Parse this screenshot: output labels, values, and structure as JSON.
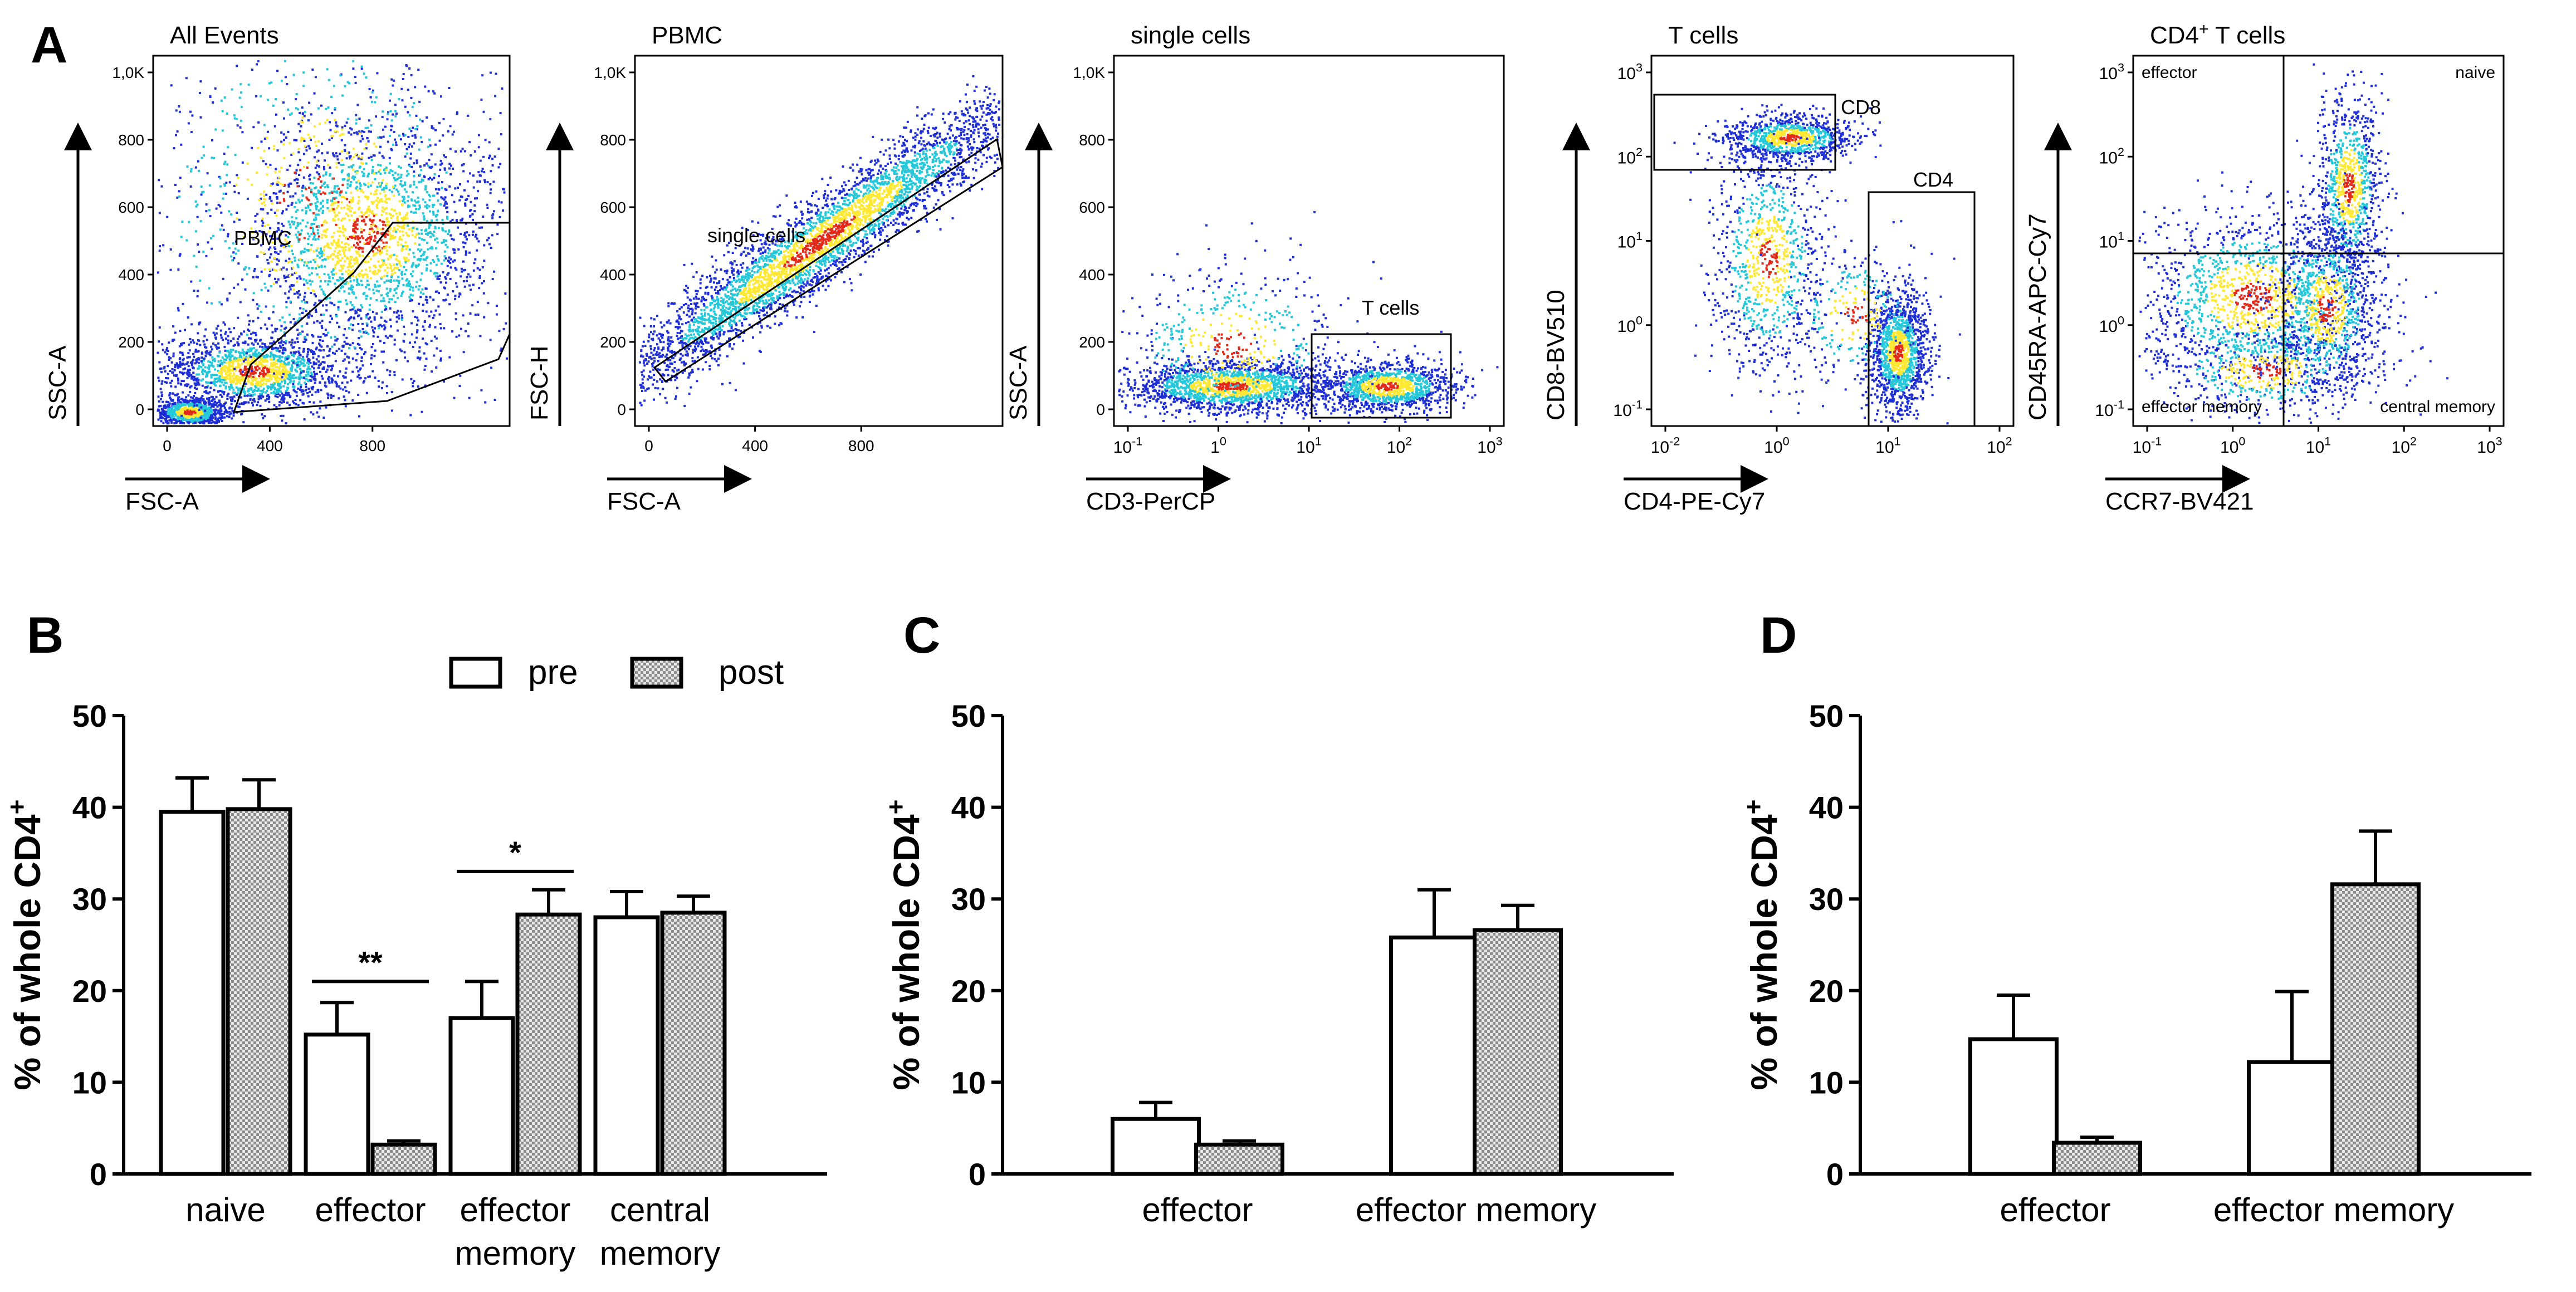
{
  "colors": {
    "axis": "#000000",
    "density_low": "#1f2fd6",
    "density_mid": "#24c8d9",
    "density_high": "#ffe833",
    "density_peak": "#e32a1a",
    "bar_pre_fill": "#ffffff",
    "bar_post_fill": "#9a9a9a"
  },
  "panel_a": {
    "letter": "A",
    "plots": [
      {
        "title": "All Events",
        "xlabel": "FSC-A",
        "ylabel": "SSC-A",
        "xticks": [
          "0",
          "400",
          "800"
        ],
        "yticks": [
          "0",
          "200",
          "400",
          "600",
          "800",
          "1,0K"
        ],
        "gates": [
          "PBMC"
        ]
      },
      {
        "title": "PBMC",
        "xlabel": "FSC-A",
        "ylabel": "FSC-H",
        "xticks": [
          "0",
          "400",
          "800"
        ],
        "yticks": [
          "0",
          "200",
          "400",
          "600",
          "800",
          "1,0K"
        ],
        "gates": [
          "single cells"
        ]
      },
      {
        "title": "single cells",
        "xlabel": "CD3-PerCP",
        "ylabel": "SSC-A",
        "xticks": [
          "10",
          "1",
          "10",
          "10",
          "10"
        ],
        "xtick_exp": [
          "-1",
          "0",
          "1",
          "2",
          "3"
        ],
        "yticks": [
          "0",
          "200",
          "400",
          "600",
          "800",
          "1,0K"
        ],
        "gates": [
          "T cells"
        ]
      },
      {
        "title": "T cells",
        "xlabel": "CD4-PE-Cy7",
        "ylabel": "CD8-BV510",
        "xticks": [
          "10",
          "10",
          "10",
          "10"
        ],
        "xtick_exp": [
          "-2",
          "0",
          "1",
          "2"
        ],
        "yticks": [
          "10",
          "10",
          "10",
          "10",
          "10"
        ],
        "ytick_exp": [
          "-1",
          "0",
          "1",
          "2",
          "3"
        ],
        "gates": [
          "CD8",
          "CD4"
        ]
      },
      {
        "title": "CD4",
        "title_sup": "+",
        "title_suffix": " T cells",
        "xlabel": "CCR7-BV421",
        "ylabel": "CD45RA-APC-Cy7",
        "xticks": [
          "10",
          "10",
          "10",
          "10",
          "10"
        ],
        "xtick_exp": [
          "-1",
          "0",
          "1",
          "2",
          "3"
        ],
        "yticks": [
          "10",
          "10",
          "10",
          "10",
          "10"
        ],
        "ytick_exp": [
          "-1",
          "0",
          "1",
          "2",
          "3"
        ],
        "quadrants": [
          "effector",
          "naive",
          "effector memory",
          "central memory"
        ]
      }
    ]
  },
  "chart_data": [
    {
      "panel": "B",
      "type": "bar",
      "ylabel": "% of whole CD4",
      "ylabel_sup": "+",
      "ylim": [
        0,
        50
      ],
      "yticks": [
        "0",
        "10",
        "20",
        "30",
        "40",
        "50"
      ],
      "categories": [
        "naive",
        "effector",
        "effector memory",
        "central memory"
      ],
      "category_lines": [
        [
          "naive"
        ],
        [
          "effector"
        ],
        [
          "effector",
          "memory"
        ],
        [
          "central",
          "memory"
        ]
      ],
      "series": [
        {
          "name": "pre",
          "values": [
            39.5,
            15.2,
            17.0,
            28.0
          ],
          "errors": [
            3.7,
            3.5,
            4.0,
            2.8
          ]
        },
        {
          "name": "post",
          "values": [
            39.8,
            3.2,
            28.3,
            28.5
          ],
          "errors": [
            3.2,
            0.4,
            2.7,
            1.8
          ]
        }
      ],
      "significance": [
        {
          "category": "effector",
          "label": "**",
          "y": 21
        },
        {
          "category": "effector memory",
          "label": "*",
          "y": 33
        }
      ],
      "legend": [
        "pre",
        "post"
      ]
    },
    {
      "panel": "C",
      "type": "bar",
      "ylabel": "% of whole CD4",
      "ylabel_sup": "+",
      "ylim": [
        0,
        50
      ],
      "yticks": [
        "0",
        "10",
        "20",
        "30",
        "40",
        "50"
      ],
      "categories": [
        "effector",
        "effector memory"
      ],
      "category_lines": [
        [
          "effector"
        ],
        [
          "effector memory"
        ]
      ],
      "series": [
        {
          "name": "pre",
          "values": [
            6.0,
            25.8
          ],
          "errors": [
            1.8,
            5.2
          ]
        },
        {
          "name": "post",
          "values": [
            3.2,
            26.6
          ],
          "errors": [
            0.4,
            2.7
          ]
        }
      ]
    },
    {
      "panel": "D",
      "type": "bar",
      "ylabel": "% of whole CD4",
      "ylabel_sup": "+",
      "ylim": [
        0,
        50
      ],
      "yticks": [
        "0",
        "10",
        "20",
        "30",
        "40",
        "50"
      ],
      "categories": [
        "effector",
        "effector memory"
      ],
      "category_lines": [
        [
          "effector"
        ],
        [
          "effector memory"
        ]
      ],
      "series": [
        {
          "name": "pre",
          "values": [
            14.7,
            12.2
          ],
          "errors": [
            4.8,
            7.7
          ]
        },
        {
          "name": "post",
          "values": [
            3.4,
            31.6
          ],
          "errors": [
            0.6,
            5.8
          ]
        }
      ]
    }
  ]
}
